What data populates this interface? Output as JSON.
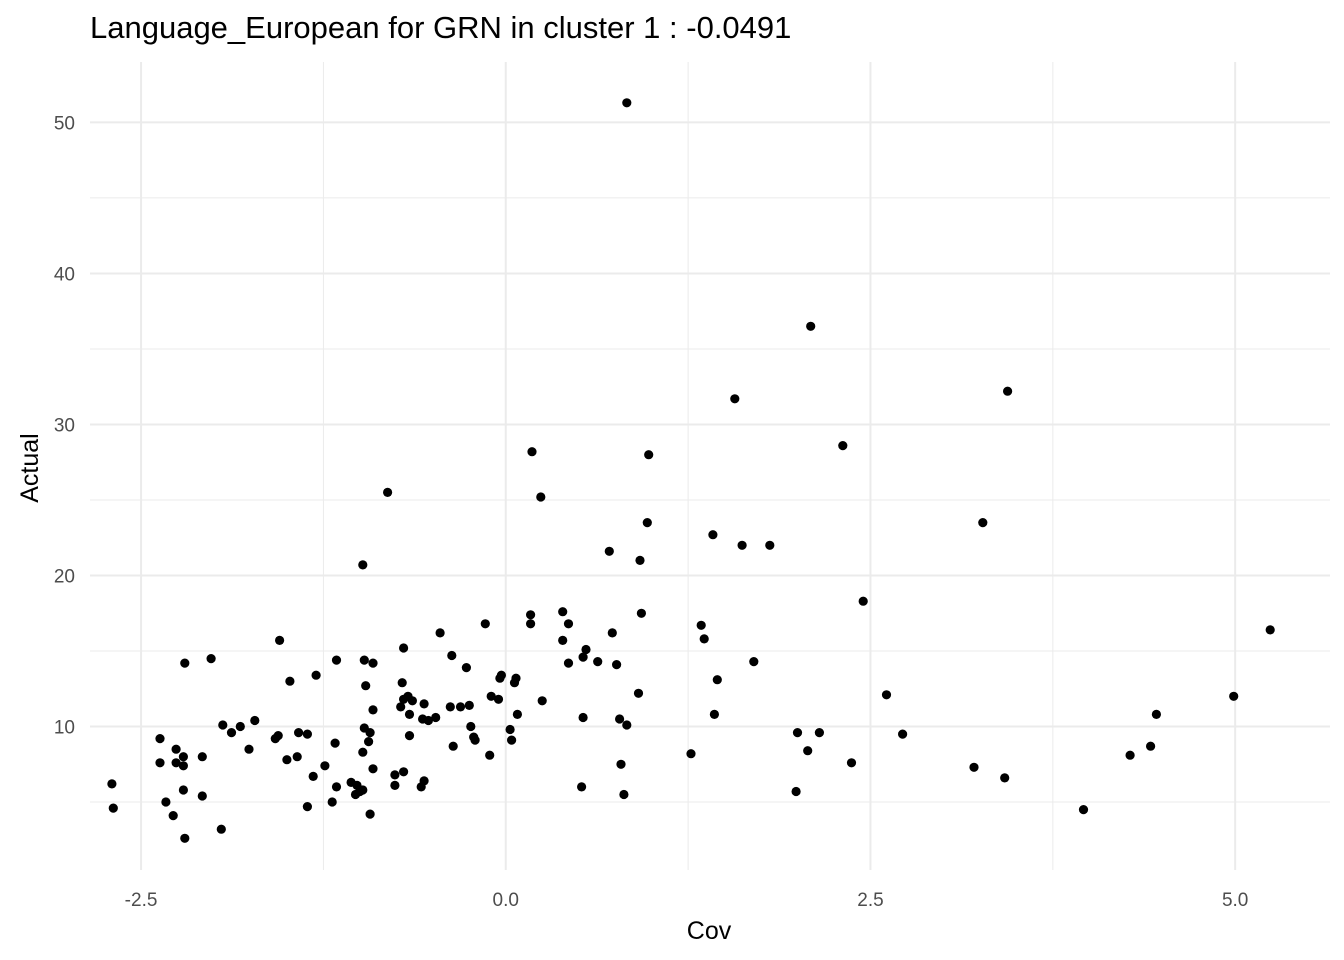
{
  "chart_data": {
    "type": "scatter",
    "title": "Language_European for GRN in cluster 1 : -0.0491",
    "xlabel": "Cov",
    "ylabel": "Actual",
    "xlim": [
      -2.85,
      5.65
    ],
    "ylim": [
      0.5,
      54.0
    ],
    "xticks": [
      -2.5,
      0.0,
      2.5,
      5.0
    ],
    "xtick_labels": [
      "-2.5",
      "0.0",
      "2.5",
      "5.0"
    ],
    "yticks": [
      10,
      20,
      30,
      40,
      50
    ],
    "ytick_labels": [
      "10",
      "20",
      "30",
      "40",
      "50"
    ],
    "grid": true,
    "point_color": "#000000",
    "points": [
      [
        0.83,
        51.3
      ],
      [
        2.09,
        36.5
      ],
      [
        3.44,
        32.2
      ],
      [
        1.57,
        31.7
      ],
      [
        2.31,
        28.6
      ],
      [
        0.18,
        28.2
      ],
      [
        0.98,
        28.0
      ],
      [
        -0.81,
        25.5
      ],
      [
        0.24,
        25.2
      ],
      [
        0.97,
        23.5
      ],
      [
        3.27,
        23.5
      ],
      [
        1.42,
        22.7
      ],
      [
        1.62,
        22.0
      ],
      [
        1.81,
        22.0
      ],
      [
        0.71,
        21.6
      ],
      [
        0.92,
        21.0
      ],
      [
        -0.98,
        20.7
      ],
      [
        2.45,
        18.3
      ],
      [
        0.17,
        17.4
      ],
      [
        0.39,
        17.6
      ],
      [
        0.93,
        17.5
      ],
      [
        -0.14,
        16.8
      ],
      [
        0.17,
        16.8
      ],
      [
        0.43,
        16.8
      ],
      [
        1.34,
        16.7
      ],
      [
        5.24,
        16.4
      ],
      [
        -0.45,
        16.2
      ],
      [
        0.73,
        16.2
      ],
      [
        1.36,
        15.8
      ],
      [
        -1.55,
        15.7
      ],
      [
        0.39,
        15.7
      ],
      [
        -0.7,
        15.2
      ],
      [
        0.55,
        15.1
      ],
      [
        -0.37,
        14.7
      ],
      [
        0.53,
        14.6
      ],
      [
        -2.02,
        14.5
      ],
      [
        0.63,
        14.3
      ],
      [
        -1.16,
        14.4
      ],
      [
        -0.97,
        14.4
      ],
      [
        1.7,
        14.3
      ],
      [
        -2.2,
        14.2
      ],
      [
        -0.91,
        14.2
      ],
      [
        0.43,
        14.2
      ],
      [
        0.76,
        14.1
      ],
      [
        -0.27,
        13.9
      ],
      [
        -1.3,
        13.4
      ],
      [
        -0.03,
        13.4
      ],
      [
        -0.04,
        13.2
      ],
      [
        0.07,
        13.2
      ],
      [
        1.45,
        13.1
      ],
      [
        -1.48,
        13.0
      ],
      [
        -0.71,
        12.9
      ],
      [
        0.06,
        12.9
      ],
      [
        -0.96,
        12.7
      ],
      [
        0.91,
        12.2
      ],
      [
        2.61,
        12.1
      ],
      [
        4.99,
        12.0
      ],
      [
        -0.67,
        12.0
      ],
      [
        -0.1,
        12.0
      ],
      [
        -0.64,
        11.7
      ],
      [
        -0.7,
        11.8
      ],
      [
        0.25,
        11.7
      ],
      [
        -0.56,
        11.5
      ],
      [
        -0.05,
        11.8
      ],
      [
        -0.72,
        11.3
      ],
      [
        -0.38,
        11.3
      ],
      [
        -0.31,
        11.3
      ],
      [
        -0.25,
        11.4
      ],
      [
        -0.91,
        11.1
      ],
      [
        -0.66,
        10.8
      ],
      [
        0.08,
        10.8
      ],
      [
        -0.48,
        10.6
      ],
      [
        -0.53,
        10.4
      ],
      [
        -0.57,
        10.5
      ],
      [
        0.53,
        10.6
      ],
      [
        0.78,
        10.5
      ],
      [
        1.43,
        10.8
      ],
      [
        4.46,
        10.8
      ],
      [
        -1.72,
        10.4
      ],
      [
        -1.94,
        10.1
      ],
      [
        -1.82,
        10.0
      ],
      [
        0.83,
        10.1
      ],
      [
        -0.97,
        9.9
      ],
      [
        -0.24,
        10.0
      ],
      [
        -1.42,
        9.6
      ],
      [
        -1.36,
        9.5
      ],
      [
        -1.56,
        9.4
      ],
      [
        -1.58,
        9.2
      ],
      [
        -1.88,
        9.6
      ],
      [
        -0.93,
        9.6
      ],
      [
        -0.22,
        9.3
      ],
      [
        0.03,
        9.8
      ],
      [
        -0.21,
        9.1
      ],
      [
        0.04,
        9.1
      ],
      [
        -0.66,
        9.4
      ],
      [
        2.0,
        9.6
      ],
      [
        2.15,
        9.6
      ],
      [
        2.72,
        9.5
      ],
      [
        -2.37,
        9.2
      ],
      [
        -0.94,
        9.0
      ],
      [
        -1.17,
        8.9
      ],
      [
        -0.36,
        8.7
      ],
      [
        -1.76,
        8.5
      ],
      [
        -2.26,
        8.5
      ],
      [
        -0.98,
        8.3
      ],
      [
        4.42,
        8.7
      ],
      [
        -0.11,
        8.1
      ],
      [
        1.27,
        8.2
      ],
      [
        2.07,
        8.4
      ],
      [
        4.28,
        8.1
      ],
      [
        -2.21,
        8.0
      ],
      [
        -2.08,
        8.0
      ],
      [
        -1.43,
        8.0
      ],
      [
        -1.5,
        7.8
      ],
      [
        -2.26,
        7.6
      ],
      [
        -2.37,
        7.6
      ],
      [
        -2.21,
        7.4
      ],
      [
        -1.24,
        7.4
      ],
      [
        -0.91,
        7.2
      ],
      [
        0.79,
        7.5
      ],
      [
        2.37,
        7.6
      ],
      [
        3.21,
        7.3
      ],
      [
        -0.7,
        7.0
      ],
      [
        -0.76,
        6.8
      ],
      [
        -1.32,
        6.7
      ],
      [
        3.42,
        6.6
      ],
      [
        -0.56,
        6.4
      ],
      [
        -1.06,
        6.3
      ],
      [
        -1.16,
        6.0
      ],
      [
        -1.02,
        6.1
      ],
      [
        -0.76,
        6.1
      ],
      [
        -0.58,
        6.0
      ],
      [
        0.52,
        6.0
      ],
      [
        -2.7,
        6.2
      ],
      [
        -2.21,
        5.8
      ],
      [
        -2.08,
        5.4
      ],
      [
        -1.0,
        5.7
      ],
      [
        -1.03,
        5.5
      ],
      [
        -0.98,
        5.8
      ],
      [
        0.81,
        5.5
      ],
      [
        1.99,
        5.7
      ],
      [
        -2.33,
        5.0
      ],
      [
        -1.19,
        5.0
      ],
      [
        -1.36,
        4.7
      ],
      [
        -2.69,
        4.6
      ],
      [
        3.96,
        4.5
      ],
      [
        -2.28,
        4.1
      ],
      [
        -0.93,
        4.2
      ],
      [
        -1.95,
        3.2
      ],
      [
        -2.2,
        2.6
      ]
    ]
  }
}
